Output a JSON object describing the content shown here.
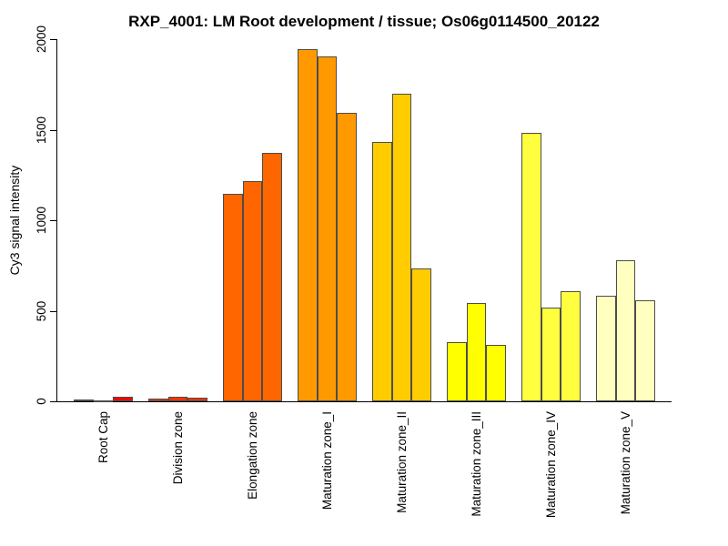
{
  "title": "RXP_4001: LM Root development / tissue; Os06g0114500_20122",
  "chart_data": {
    "type": "bar",
    "title": "RXP_4001: LM Root development / tissue; Os06g0114500_20122",
    "xlabel": "",
    "ylabel": "Cy3 signal intensity",
    "ylim": [
      0,
      2000
    ],
    "yticks": [
      0,
      500,
      1000,
      1500,
      2000
    ],
    "grid": false,
    "legend_position": "none",
    "bars_per_group": 3,
    "categories": [
      "Root Cap",
      "Division zone",
      "Elongation zone",
      "Maturation zone_I",
      "Maturation zone_II",
      "Maturation zone_III",
      "Maturation zone_IV",
      "Maturation zone_V"
    ],
    "groups": [
      {
        "label": "Root Cap",
        "color": "#FF0000",
        "values": [
          12,
          5,
          24
        ]
      },
      {
        "label": "Division zone",
        "color": "#FF3300",
        "values": [
          15,
          27,
          21
        ]
      },
      {
        "label": "Elongation zone",
        "color": "#FF6600",
        "values": [
          1147,
          1215,
          1371
        ]
      },
      {
        "label": "Maturation zone_I",
        "color": "#FF9900",
        "values": [
          1947,
          1903,
          1591
        ]
      },
      {
        "label": "Maturation zone_II",
        "color": "#FFCC00",
        "values": [
          1430,
          1700,
          735
        ]
      },
      {
        "label": "Maturation zone_III",
        "color": "#FFFF00",
        "values": [
          327,
          541,
          312
        ]
      },
      {
        "label": "Maturation zone_IV",
        "color": "#FFFF40",
        "values": [
          1482,
          517,
          610
        ]
      },
      {
        "label": "Maturation zone_V",
        "color": "#FFFFBF",
        "values": [
          585,
          781,
          557
        ]
      }
    ]
  },
  "colors": {
    "background": "#FFFFFF",
    "axis": "#000000",
    "text": "#000000",
    "bar_border": "#4D4D4D"
  }
}
